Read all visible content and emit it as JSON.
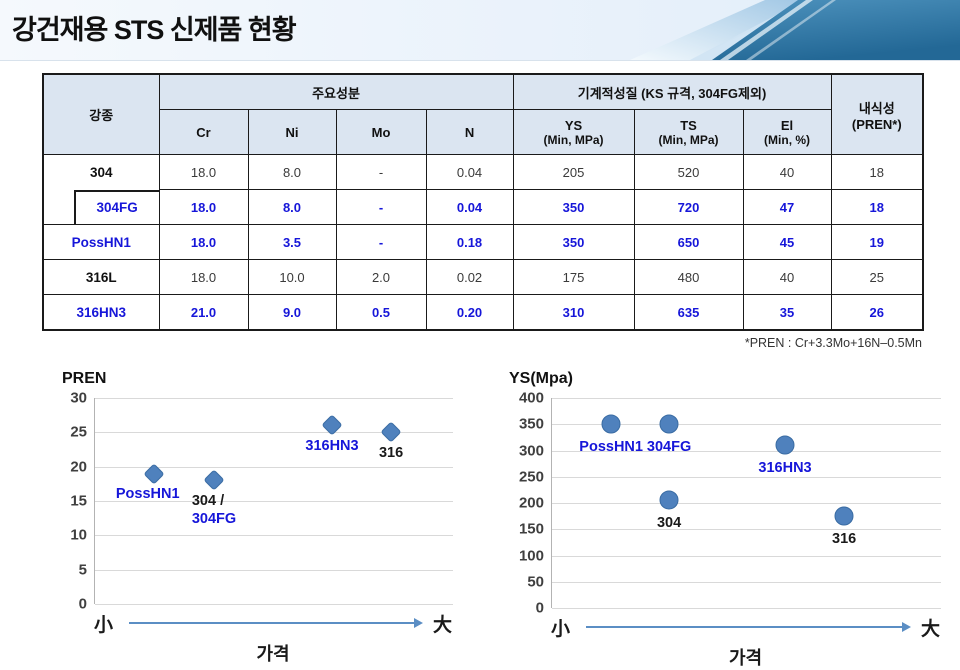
{
  "header": {
    "title": "강건재용 STS 신제품 현황"
  },
  "table": {
    "grade_header": "강종",
    "composition_header": "주요성분",
    "mechanical_header": "기계적성질 (KS 규격, 304FG제외)",
    "corrosion_header": {
      "line1": "내식성",
      "line2": "(PREN*)"
    },
    "composition_columns": [
      "Cr",
      "Ni",
      "Mo",
      "N"
    ],
    "mechanical_columns": [
      {
        "name": "YS",
        "unit": "(Min, MPa)"
      },
      {
        "name": "TS",
        "unit": "(Min, MPa)"
      },
      {
        "name": "El",
        "unit": "(Min, %)"
      }
    ],
    "rows": [
      {
        "grade": "304",
        "style": "black",
        "indent": false,
        "values": [
          "18.0",
          "8.0",
          "-",
          "0.04",
          "205",
          "520",
          "40",
          "18"
        ]
      },
      {
        "grade": "304FG",
        "style": "blue",
        "indent": true,
        "values": [
          "18.0",
          "8.0",
          "-",
          "0.04",
          "350",
          "720",
          "47",
          "18"
        ]
      },
      {
        "grade": "PossHN1",
        "style": "blue",
        "indent": false,
        "values": [
          "18.0",
          "3.5",
          "-",
          "0.18",
          "350",
          "650",
          "45",
          "19"
        ]
      },
      {
        "grade": "316L",
        "style": "black",
        "indent": false,
        "values": [
          "18.0",
          "10.0",
          "2.0",
          "0.02",
          "175",
          "480",
          "40",
          "25"
        ]
      },
      {
        "grade": "316HN3",
        "style": "blue",
        "indent": false,
        "values": [
          "21.0",
          "9.0",
          "0.5",
          "0.20",
          "310",
          "635",
          "35",
          "26"
        ]
      }
    ],
    "footnote": "*PREN : Cr+3.3Mo+16N–0.5Mn"
  },
  "chart_data": [
    {
      "type": "scatter",
      "title": "PREN",
      "xlabel": "가격",
      "x_left_glyph": "小",
      "x_right_glyph": "大",
      "ylim": [
        0,
        30
      ],
      "yticks": [
        30,
        25,
        20,
        15,
        10,
        5,
        0
      ],
      "grid": true,
      "marker": "diamond",
      "points": [
        {
          "series": "PossHN1",
          "x": 0.165,
          "y": 19,
          "label_pos": "below-left",
          "label_lines": [
            {
              "text": "PossHN1",
              "color": "blue"
            }
          ]
        },
        {
          "series": "304/304FG",
          "x": 0.332,
          "y": 18,
          "label_pos": "below-start",
          "label_lines": [
            {
              "text": "304 /",
              "color": "black"
            },
            {
              "text": "304FG",
              "color": "blue"
            }
          ]
        },
        {
          "series": "316HN3",
          "x": 0.662,
          "y": 26,
          "label_pos": "below",
          "label_lines": [
            {
              "text": "316HN3",
              "color": "blue"
            }
          ]
        },
        {
          "series": "316",
          "x": 0.827,
          "y": 25,
          "label_pos": "below",
          "label_lines": [
            {
              "text": "316",
              "color": "black"
            }
          ]
        }
      ]
    },
    {
      "type": "scatter",
      "title": "YS(Mpa)",
      "xlabel": "가격",
      "x_left_glyph": "小",
      "x_right_glyph": "大",
      "ylim": [
        0,
        400
      ],
      "yticks": [
        400,
        350,
        300,
        250,
        200,
        150,
        100,
        50,
        0
      ],
      "grid": true,
      "marker": "circle",
      "points": [
        {
          "series": "PossHN1",
          "x": 0.152,
          "y": 350,
          "label_pos": "below",
          "label_lines": [
            {
              "text": "PossHN1",
              "color": "blue"
            }
          ]
        },
        {
          "series": "304FG",
          "x": 0.301,
          "y": 350,
          "label_pos": "below",
          "label_lines": [
            {
              "text": "304FG",
              "color": "blue"
            }
          ]
        },
        {
          "series": "304",
          "x": 0.301,
          "y": 205,
          "label_pos": "below",
          "label_lines": [
            {
              "text": "304",
              "color": "black"
            }
          ]
        },
        {
          "series": "316HN3",
          "x": 0.599,
          "y": 310,
          "label_pos": "below",
          "label_lines": [
            {
              "text": "316HN3",
              "color": "blue"
            }
          ]
        },
        {
          "series": "316",
          "x": 0.751,
          "y": 175,
          "label_pos": "below",
          "label_lines": [
            {
              "text": "316",
              "color": "black"
            }
          ]
        }
      ]
    }
  ],
  "colors": {
    "text_blue": "#1616d9",
    "marker_fill": "#4f81bd",
    "marker_edge": "#3a6ca3",
    "arrow": "#5b8ec4",
    "header_fill": "#dbe5f1",
    "grid": "#d9d9d9",
    "axis": "#b3b3b3",
    "tick_text": "#3f3f3f",
    "swoosh_dark_top": "#4e93be",
    "swoosh_dark_bottom": "#236896",
    "swoosh_light": "#a9cde9"
  }
}
